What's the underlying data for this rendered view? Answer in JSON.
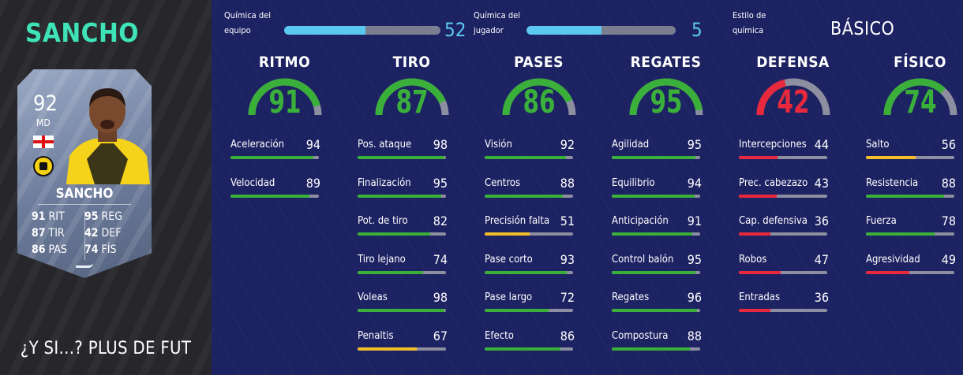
{
  "colors": {
    "name_accent": "#3ee3b7",
    "chem_accent": "#5ac8f0",
    "high": "#3ab03a",
    "mid": "#f4be28",
    "low": "#e8283c",
    "track": "#8d8fa0"
  },
  "player": {
    "name": "SANCHO",
    "card": {
      "rating": "92",
      "position": "MD",
      "name": "SANCHO",
      "stats_left": [
        {
          "value": "91",
          "label": "RIT"
        },
        {
          "value": "87",
          "label": "TIR"
        },
        {
          "value": "86",
          "label": "PAS"
        }
      ],
      "stats_right": [
        {
          "value": "95",
          "label": "REG"
        },
        {
          "value": "42",
          "label": "DEF"
        },
        {
          "value": "74",
          "label": "FÍS"
        }
      ]
    },
    "footer": "¿Y SI...? PLUS DE FUT"
  },
  "chemistry": {
    "team_label": "Química del equipo",
    "team_value": "52",
    "team_fraction": 0.52,
    "player_label": "Química del jugador",
    "player_value": "5",
    "player_fraction": 0.5,
    "style_label": "Estilo de química",
    "style_value": "BÁSICO"
  },
  "categories": [
    {
      "title": "RITMO",
      "value": "91",
      "stats": [
        {
          "name": "Aceleración",
          "value": "94"
        },
        {
          "name": "Velocidad",
          "value": "89"
        }
      ]
    },
    {
      "title": "TIRO",
      "value": "87",
      "stats": [
        {
          "name": "Pos. ataque",
          "value": "98"
        },
        {
          "name": "Finalización",
          "value": "95"
        },
        {
          "name": "Pot. de tiro",
          "value": "82"
        },
        {
          "name": "Tiro lejano",
          "value": "74"
        },
        {
          "name": "Voleas",
          "value": "98"
        },
        {
          "name": "Penaltis",
          "value": "67"
        }
      ]
    },
    {
      "title": "PASES",
      "value": "86",
      "stats": [
        {
          "name": "Visión",
          "value": "92"
        },
        {
          "name": "Centros",
          "value": "88"
        },
        {
          "name": "Precisión falta",
          "value": "51"
        },
        {
          "name": "Pase corto",
          "value": "93"
        },
        {
          "name": "Pase largo",
          "value": "72"
        },
        {
          "name": "Efecto",
          "value": "86"
        }
      ]
    },
    {
      "title": "REGATES",
      "value": "95",
      "stats": [
        {
          "name": "Agilidad",
          "value": "95"
        },
        {
          "name": "Equilibrio",
          "value": "94"
        },
        {
          "name": "Anticipación",
          "value": "91"
        },
        {
          "name": "Control balón",
          "value": "95"
        },
        {
          "name": "Regates",
          "value": "96"
        },
        {
          "name": "Compostura",
          "value": "88"
        }
      ]
    },
    {
      "title": "DEFENSA",
      "value": "42",
      "stats": [
        {
          "name": "Intercepciones",
          "value": "44"
        },
        {
          "name": "Prec. cabezazo",
          "value": "43"
        },
        {
          "name": "Cap. defensiva",
          "value": "36"
        },
        {
          "name": "Robos",
          "value": "47"
        },
        {
          "name": "Entradas",
          "value": "36"
        }
      ]
    },
    {
      "title": "FÍSICO",
      "value": "74",
      "stats": [
        {
          "name": "Salto",
          "value": "56"
        },
        {
          "name": "Resistencia",
          "value": "88"
        },
        {
          "name": "Fuerza",
          "value": "78"
        },
        {
          "name": "Agresividad",
          "value": "49"
        }
      ]
    }
  ]
}
